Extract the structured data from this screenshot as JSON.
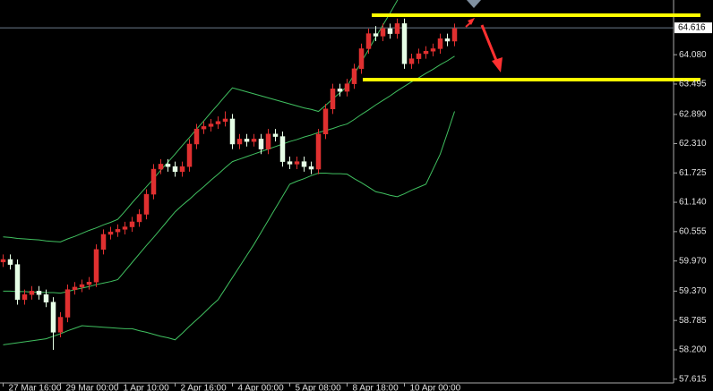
{
  "chart_data": {
    "type": "candlestick",
    "categories": [
      "27 Mar 16:00",
      null,
      null,
      null,
      null,
      null,
      null,
      null,
      "29 Mar 00:00",
      null,
      null,
      null,
      null,
      null,
      null,
      null,
      "1 Apr 10:00",
      null,
      null,
      null,
      null,
      null,
      null,
      null,
      "2 Apr 16:00",
      null,
      null,
      null,
      null,
      null,
      null,
      null,
      "4 Apr 00:00",
      null,
      null,
      null,
      null,
      null,
      null,
      null,
      "5 Apr 08:00",
      null,
      null,
      null,
      null,
      null,
      null,
      null,
      "8 Apr 18:00",
      null,
      null,
      null,
      null,
      null,
      null,
      null,
      "10 Apr 00:00",
      null,
      null,
      null,
      null,
      null,
      null,
      null
    ],
    "open": [
      59.95,
      60.0,
      59.9,
      59.2,
      59.3,
      59.37,
      59.3,
      59.15,
      58.55,
      58.85,
      59.4,
      59.45,
      59.5,
      59.55,
      60.2,
      60.5,
      60.55,
      60.6,
      60.65,
      60.75,
      60.9,
      61.3,
      61.8,
      61.9,
      61.85,
      61.75,
      61.85,
      62.3,
      62.6,
      62.65,
      62.7,
      62.75,
      62.8,
      62.3,
      62.4,
      62.35,
      62.4,
      62.2,
      62.5,
      62.45,
      61.95,
      61.9,
      61.95,
      61.85,
      61.8,
      62.5,
      63.0,
      63.4,
      63.35,
      63.5,
      63.8,
      64.2,
      64.5,
      64.45,
      64.6,
      64.5,
      64.7,
      63.9,
      64.0,
      64.1,
      64.15,
      64.2,
      64.4,
      64.35
    ],
    "high": [
      60.1,
      60.1,
      60.0,
      59.4,
      59.47,
      59.47,
      59.4,
      59.25,
      58.95,
      59.5,
      59.55,
      59.6,
      59.65,
      60.3,
      60.6,
      60.65,
      60.7,
      60.75,
      60.85,
      61.0,
      61.4,
      61.9,
      62.0,
      62.0,
      61.95,
      61.95,
      62.4,
      62.7,
      62.75,
      62.8,
      62.85,
      62.95,
      62.9,
      62.5,
      62.5,
      62.5,
      62.5,
      62.6,
      62.6,
      62.55,
      62.05,
      62.05,
      62.05,
      61.95,
      62.6,
      63.1,
      63.5,
      63.5,
      63.6,
      63.9,
      64.3,
      64.6,
      64.65,
      64.7,
      64.7,
      64.8,
      64.8,
      64.1,
      64.2,
      64.25,
      64.3,
      64.5,
      64.5,
      64.7
    ],
    "low": [
      59.85,
      59.8,
      59.1,
      59.1,
      59.2,
      59.2,
      59.05,
      58.2,
      58.45,
      58.75,
      59.3,
      59.35,
      59.4,
      59.45,
      60.1,
      60.4,
      60.45,
      60.5,
      60.55,
      60.65,
      60.8,
      61.2,
      61.7,
      61.75,
      61.65,
      61.65,
      61.75,
      62.2,
      62.5,
      62.55,
      62.6,
      62.65,
      62.2,
      62.2,
      62.25,
      62.25,
      62.1,
      62.1,
      62.35,
      61.85,
      61.8,
      61.8,
      61.75,
      61.7,
      61.7,
      62.4,
      62.9,
      63.25,
      63.25,
      63.4,
      63.7,
      64.1,
      64.35,
      64.35,
      64.4,
      64.4,
      63.8,
      63.8,
      63.9,
      64.0,
      64.05,
      64.1,
      64.25,
      64.25
    ],
    "close": [
      60.0,
      59.9,
      59.2,
      59.3,
      59.37,
      59.3,
      59.15,
      58.55,
      58.85,
      59.4,
      59.45,
      59.5,
      59.55,
      60.2,
      60.5,
      60.55,
      60.6,
      60.65,
      60.75,
      60.9,
      61.3,
      61.8,
      61.9,
      61.85,
      61.75,
      61.85,
      62.3,
      62.6,
      62.65,
      62.7,
      62.75,
      62.8,
      62.3,
      62.4,
      62.35,
      62.4,
      62.2,
      62.5,
      62.45,
      61.95,
      61.9,
      61.95,
      61.85,
      61.8,
      62.5,
      63.0,
      63.4,
      63.35,
      63.5,
      63.8,
      64.2,
      64.5,
      64.45,
      64.6,
      64.5,
      64.7,
      63.9,
      64.0,
      64.1,
      64.15,
      64.2,
      64.4,
      64.35,
      64.6
    ],
    "up_color": "#e03030",
    "down_color": "#e6ffe6",
    "overlays": [
      {
        "color": "#40c060",
        "values": [
          60.45,
          60.44,
          60.42,
          60.41,
          60.4,
          60.39,
          60.37,
          60.36,
          60.35,
          60.41,
          60.46,
          60.52,
          60.58,
          60.63,
          60.69,
          60.74,
          60.8,
          60.96,
          61.13,
          61.29,
          61.45,
          61.61,
          61.78,
          61.94,
          62.1,
          62.27,
          62.43,
          62.6,
          62.76,
          62.93,
          63.09,
          63.26,
          63.42,
          63.38,
          63.34,
          63.3,
          63.26,
          63.22,
          63.18,
          63.14,
          63.1,
          63.06,
          63.02,
          62.99,
          62.95,
          63.07,
          63.2,
          63.32,
          63.45,
          63.69,
          63.94,
          64.18,
          64.43,
          64.67,
          64.91,
          65.16,
          65.4,
          65.47,
          65.54,
          65.61,
          65.69,
          65.76,
          65.83,
          65.9
        ]
      },
      {
        "color": "#40c060",
        "values": [
          59.37,
          59.37,
          59.36,
          59.36,
          59.35,
          59.35,
          59.34,
          59.34,
          59.33,
          59.36,
          59.4,
          59.43,
          59.46,
          59.5,
          59.53,
          59.56,
          59.6,
          59.77,
          59.94,
          60.11,
          60.28,
          60.44,
          60.61,
          60.78,
          60.95,
          61.08,
          61.2,
          61.33,
          61.45,
          61.58,
          61.7,
          61.83,
          61.95,
          62.0,
          62.05,
          62.1,
          62.15,
          62.2,
          62.25,
          62.3,
          62.35,
          62.39,
          62.44,
          62.48,
          62.53,
          62.57,
          62.61,
          62.66,
          62.7,
          62.79,
          62.89,
          62.98,
          63.08,
          63.17,
          63.26,
          63.36,
          63.45,
          63.54,
          63.62,
          63.71,
          63.79,
          63.88,
          63.96,
          64.05
        ]
      },
      {
        "color": "#40c060",
        "values": [
          58.3,
          58.32,
          58.34,
          58.36,
          58.38,
          58.4,
          58.42,
          58.47,
          58.52,
          58.58,
          58.63,
          58.68,
          58.67,
          58.66,
          58.65,
          58.64,
          58.63,
          58.62,
          58.62,
          58.58,
          58.55,
          58.51,
          58.47,
          58.44,
          58.4,
          58.53,
          58.67,
          58.8,
          58.93,
          59.07,
          59.2,
          59.42,
          59.64,
          59.86,
          60.08,
          60.3,
          60.54,
          60.78,
          61.02,
          61.26,
          61.5,
          61.56,
          61.61,
          61.67,
          61.72,
          61.72,
          61.71,
          61.71,
          61.7,
          61.61,
          61.53,
          61.44,
          61.35,
          61.32,
          61.28,
          61.25,
          61.31,
          61.38,
          61.44,
          61.5,
          61.8,
          62.1,
          62.52,
          62.95
        ]
      }
    ],
    "current_price": 64.616,
    "ylim": [
      57.54,
      65.17
    ],
    "yticks": [
      {
        "value": 64.08,
        "label": "64.080"
      },
      63.495,
      {
        "value": 62.89,
        "label": "62.890"
      },
      {
        "value": 62.31,
        "label": "62.310"
      },
      61.725,
      {
        "value": 61.14,
        "label": "61.140"
      },
      60.555,
      {
        "value": 59.97,
        "label": "59.970"
      },
      {
        "value": 59.37,
        "label": "59.370"
      },
      58.785,
      {
        "value": 58.2,
        "label": "58.200"
      },
      57.615
    ]
  }
}
